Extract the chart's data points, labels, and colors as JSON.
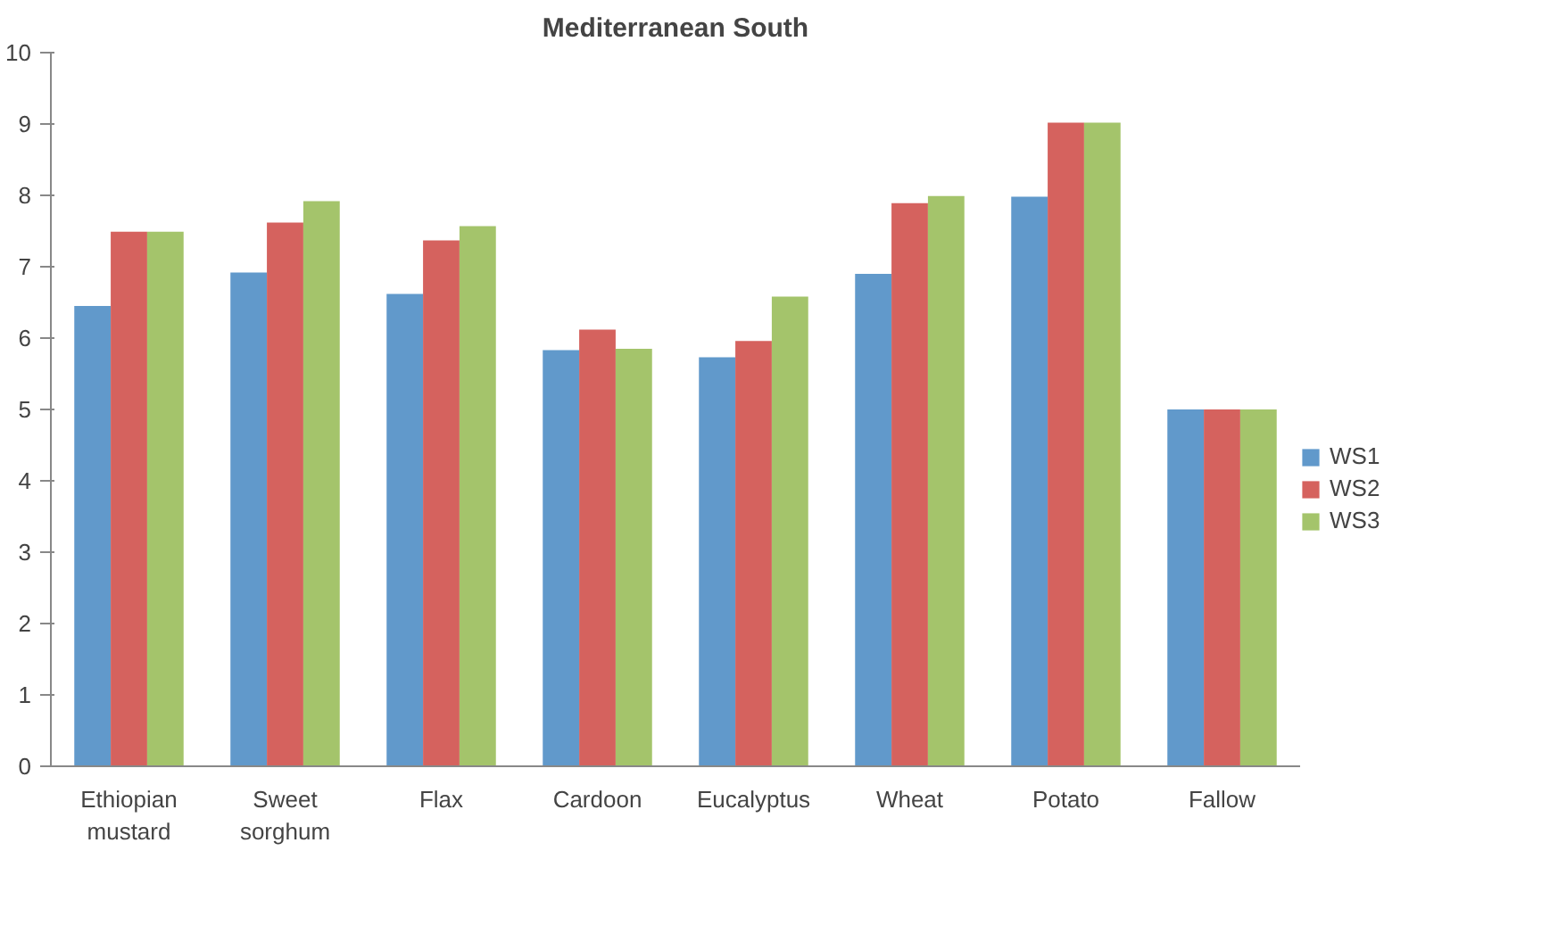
{
  "chart_data": {
    "type": "bar",
    "title": "Mediterranean South",
    "categories": [
      "Ethiopian\nmustard",
      "Sweet\nsorghum",
      "Flax",
      "Cardoon",
      "Eucalyptus",
      "Wheat",
      "Potato",
      "Fallow"
    ],
    "series": [
      {
        "name": "WS1",
        "color": "#6199cb",
        "values": [
          6.45,
          6.92,
          6.62,
          5.83,
          5.73,
          6.9,
          7.98,
          5.0
        ]
      },
      {
        "name": "WS2",
        "color": "#d5625e",
        "values": [
          7.49,
          7.62,
          7.37,
          6.12,
          5.96,
          7.89,
          9.02,
          5.0
        ]
      },
      {
        "name": "WS3",
        "color": "#a4c46b",
        "values": [
          7.49,
          7.92,
          7.57,
          5.85,
          6.58,
          7.99,
          9.02,
          5.0
        ]
      }
    ],
    "ylim": [
      0,
      10
    ],
    "yticks": [
      0,
      1,
      2,
      3,
      4,
      5,
      6,
      7,
      8,
      9,
      10
    ],
    "grid": false,
    "legend": "right"
  }
}
